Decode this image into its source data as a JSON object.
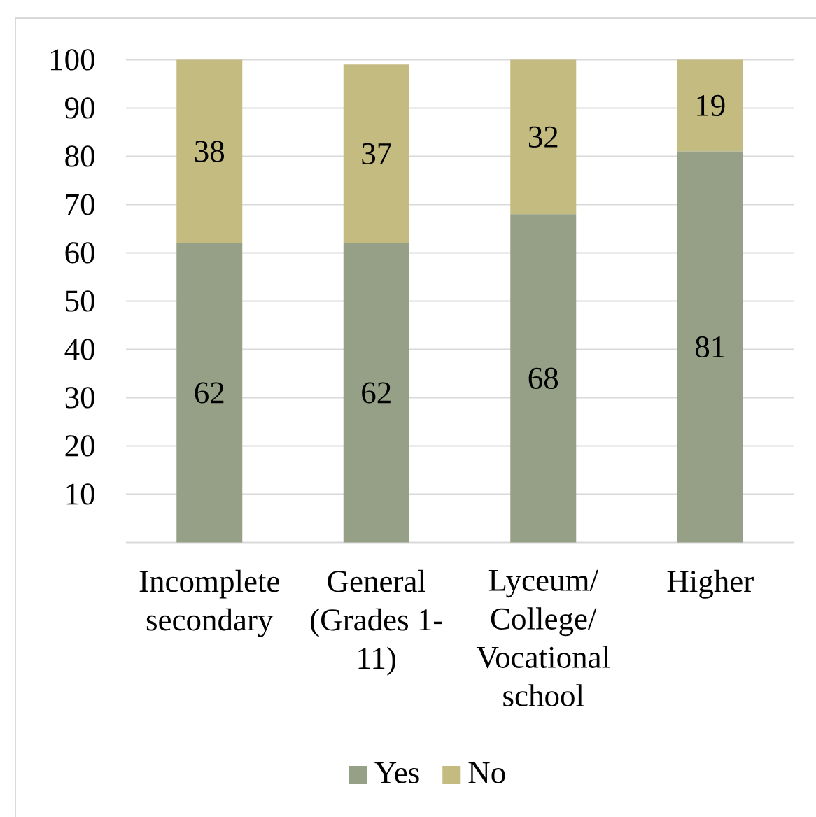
{
  "chart_data": {
    "type": "bar",
    "stacked": true,
    "categories": [
      "Incomplete secondary",
      "General (Grades 1-11)",
      "Lyceum/ College/ Vocational school",
      "Higher"
    ],
    "series": [
      {
        "name": "Yes",
        "color": "#96a086",
        "values": [
          62,
          62,
          68,
          81
        ]
      },
      {
        "name": "No",
        "color": "#c3bb80",
        "values": [
          38,
          37,
          32,
          19
        ]
      }
    ],
    "ylim": [
      0,
      100
    ],
    "yticks": [
      10,
      20,
      30,
      40,
      50,
      60,
      70,
      80,
      90,
      100
    ],
    "grid": "y",
    "legend": "bottom",
    "data_labels": true
  }
}
